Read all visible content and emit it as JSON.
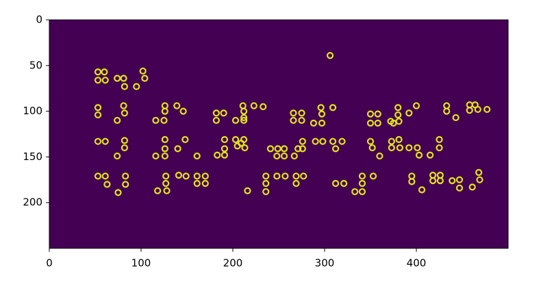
{
  "chart_data": {
    "type": "scatter",
    "background": "#440154",
    "color": "#e3e418",
    "edge_color": "#2a9d8a",
    "xlim": [
      0,
      500
    ],
    "ylim": [
      250,
      0
    ],
    "xticks": [
      0,
      100,
      200,
      300,
      400
    ],
    "yticks": [
      0,
      50,
      100,
      150,
      200
    ],
    "x": [
      53,
      60,
      53,
      61,
      74,
      81,
      82,
      95,
      102,
      104,
      306,
      53,
      53,
      81,
      82,
      74,
      126,
      126,
      116,
      125,
      139,
      146,
      182,
      190,
      182,
      211,
      212,
      212,
      203,
      212,
      223,
      233,
      266,
      266,
      275,
      275,
      296,
      297,
      288,
      297,
      309,
      350,
      358,
      350,
      358,
      380,
      380,
      372,
      381,
      375,
      392,
      400,
      433,
      433,
      443,
      458,
      458,
      464,
      467,
      477,
      53,
      61,
      82,
      82,
      74,
      126,
      126,
      126,
      116,
      140,
      148,
      161,
      191,
      191,
      183,
      191,
      203,
      212,
      209,
      205,
      213,
      241,
      249,
      256,
      248,
      256,
      267,
      271,
      276,
      276,
      290,
      298,
      309,
      312,
      319,
      350,
      352,
      360,
      373,
      373,
      381,
      382,
      392,
      401,
      403,
      415,
      425,
      425,
      53,
      61,
      63,
      75,
      83,
      83,
      127,
      127,
      118,
      128,
      141,
      149,
      161,
      161,
      170,
      170,
      216,
      236,
      236,
      236,
      248,
      257,
      269,
      269,
      277,
      312,
      321,
      333,
      341,
      341,
      341,
      353,
      395,
      395,
      406,
      418,
      418,
      426,
      426,
      439,
      447,
      447,
      461,
      468,
      469
    ],
    "y": [
      57,
      57,
      66,
      66,
      64,
      64,
      73,
      73,
      56,
      64,
      39,
      96,
      104,
      94,
      102,
      110,
      94,
      100,
      110,
      110,
      94,
      100,
      102,
      102,
      110,
      94,
      100,
      107,
      110,
      110,
      94,
      95,
      102,
      110,
      102,
      110,
      96,
      103,
      113,
      113,
      96,
      103,
      103,
      113,
      113,
      96,
      104,
      111,
      111,
      113,
      102,
      94,
      94,
      100,
      107,
      93,
      99,
      93,
      98,
      98,
      133,
      133,
      132,
      140,
      149,
      131,
      141,
      149,
      149,
      141,
      131,
      149,
      131,
      141,
      148,
      148,
      131,
      131,
      135,
      138,
      140,
      141,
      141,
      141,
      149,
      149,
      149,
      141,
      133,
      141,
      133,
      133,
      133,
      141,
      133,
      133,
      140,
      149,
      133,
      140,
      131,
      140,
      140,
      140,
      148,
      148,
      131,
      140,
      171,
      171,
      180,
      189,
      171,
      180,
      171,
      179,
      187,
      187,
      170,
      171,
      171,
      179,
      171,
      179,
      187,
      171,
      179,
      188,
      171,
      171,
      171,
      179,
      171,
      179,
      179,
      188,
      171,
      179,
      188,
      171,
      171,
      177,
      186,
      170,
      176,
      170,
      176,
      176,
      175,
      184,
      183,
      167,
      175
    ]
  }
}
